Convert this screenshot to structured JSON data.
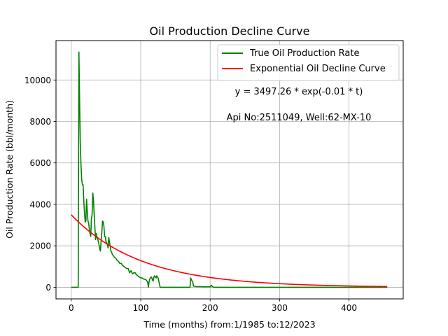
{
  "chart_data": {
    "type": "line",
    "title": "Oil Production Decline Curve",
    "xlabel": "Time (months) from:1/1985 to:12/2023",
    "ylabel": "Oil Production Rate (bbl/month)",
    "xlim": [
      -22,
      478
    ],
    "ylim": [
      -560,
      11900
    ],
    "xticks": [
      0,
      100,
      200,
      300,
      400
    ],
    "yticks": [
      0,
      2000,
      4000,
      6000,
      8000,
      10000
    ],
    "grid": true,
    "legend_position": "top-right",
    "annotations": [
      "y = 3497.26 * exp(-0.01 * t)",
      "Api No:2511049, Well:62-MX-10"
    ],
    "series": [
      {
        "name": "True Oil Production Rate",
        "color": "#008000",
        "points": [
          [
            0,
            0
          ],
          [
            9,
            0
          ],
          [
            10,
            0
          ],
          [
            11,
            11350
          ],
          [
            12,
            9000
          ],
          [
            13,
            6900
          ],
          [
            14,
            5900
          ],
          [
            15,
            5200
          ],
          [
            16,
            4950
          ],
          [
            17,
            4950
          ],
          [
            18,
            4200
          ],
          [
            19,
            3600
          ],
          [
            20,
            3150
          ],
          [
            21,
            3200
          ],
          [
            22,
            4250
          ],
          [
            23,
            3700
          ],
          [
            24,
            3200
          ],
          [
            25,
            3100
          ],
          [
            26,
            2800
          ],
          [
            27,
            2600
          ],
          [
            28,
            2450
          ],
          [
            29,
            3300
          ],
          [
            30,
            3500
          ],
          [
            31,
            4550
          ],
          [
            32,
            4200
          ],
          [
            33,
            3500
          ],
          [
            34,
            2900
          ],
          [
            35,
            2300
          ],
          [
            36,
            2600
          ],
          [
            37,
            2400
          ],
          [
            38,
            2350
          ],
          [
            39,
            2200
          ],
          [
            40,
            2050
          ],
          [
            41,
            1850
          ],
          [
            42,
            1750
          ],
          [
            43,
            2250
          ],
          [
            44,
            2650
          ],
          [
            45,
            3200
          ],
          [
            46,
            3150
          ],
          [
            47,
            2950
          ],
          [
            48,
            2450
          ],
          [
            49,
            2450
          ],
          [
            50,
            2200
          ],
          [
            51,
            2150
          ],
          [
            52,
            2050
          ],
          [
            53,
            1900
          ],
          [
            54,
            2400
          ],
          [
            55,
            2200
          ],
          [
            56,
            2000
          ],
          [
            57,
            1750
          ],
          [
            58,
            1700
          ],
          [
            59,
            1600
          ],
          [
            60,
            1550
          ],
          [
            62,
            1450
          ],
          [
            64,
            1400
          ],
          [
            66,
            1300
          ],
          [
            68,
            1250
          ],
          [
            70,
            1150
          ],
          [
            72,
            1150
          ],
          [
            74,
            1050
          ],
          [
            76,
            1000
          ],
          [
            78,
            950
          ],
          [
            80,
            900
          ],
          [
            82,
            900
          ],
          [
            84,
            700
          ],
          [
            86,
            800
          ],
          [
            88,
            650
          ],
          [
            90,
            700
          ],
          [
            92,
            700
          ],
          [
            94,
            600
          ],
          [
            96,
            550
          ],
          [
            98,
            500
          ],
          [
            100,
            450
          ],
          [
            102,
            450
          ],
          [
            104,
            400
          ],
          [
            106,
            380
          ],
          [
            108,
            350
          ],
          [
            110,
            250
          ],
          [
            111,
            0
          ],
          [
            112,
            250
          ],
          [
            113,
            400
          ],
          [
            114,
            450
          ],
          [
            115,
            500
          ],
          [
            116,
            450
          ],
          [
            117,
            350
          ],
          [
            118,
            300
          ],
          [
            119,
            500
          ],
          [
            120,
            550
          ],
          [
            121,
            500
          ],
          [
            122,
            450
          ],
          [
            123,
            550
          ],
          [
            124,
            500
          ],
          [
            125,
            450
          ],
          [
            126,
            300
          ],
          [
            127,
            150
          ],
          [
            128,
            0
          ],
          [
            130,
            0
          ],
          [
            140,
            0
          ],
          [
            150,
            0
          ],
          [
            160,
            0
          ],
          [
            170,
            0
          ],
          [
            171,
            0
          ],
          [
            172,
            450
          ],
          [
            173,
            380
          ],
          [
            174,
            300
          ],
          [
            175,
            250
          ],
          [
            176,
            60
          ],
          [
            180,
            30
          ],
          [
            185,
            30
          ],
          [
            190,
            20
          ],
          [
            195,
            20
          ],
          [
            200,
            20
          ],
          [
            202,
            100
          ],
          [
            203,
            40
          ],
          [
            205,
            0
          ],
          [
            220,
            0
          ],
          [
            250,
            0
          ],
          [
            300,
            0
          ],
          [
            350,
            0
          ],
          [
            400,
            0
          ],
          [
            455,
            0
          ]
        ]
      },
      {
        "name": "Exponential Oil Decline Curve",
        "color": "#ff0000",
        "function": {
          "a": 3497.26,
          "b": 0.01,
          "t_start": 0,
          "t_end": 455
        }
      }
    ]
  }
}
